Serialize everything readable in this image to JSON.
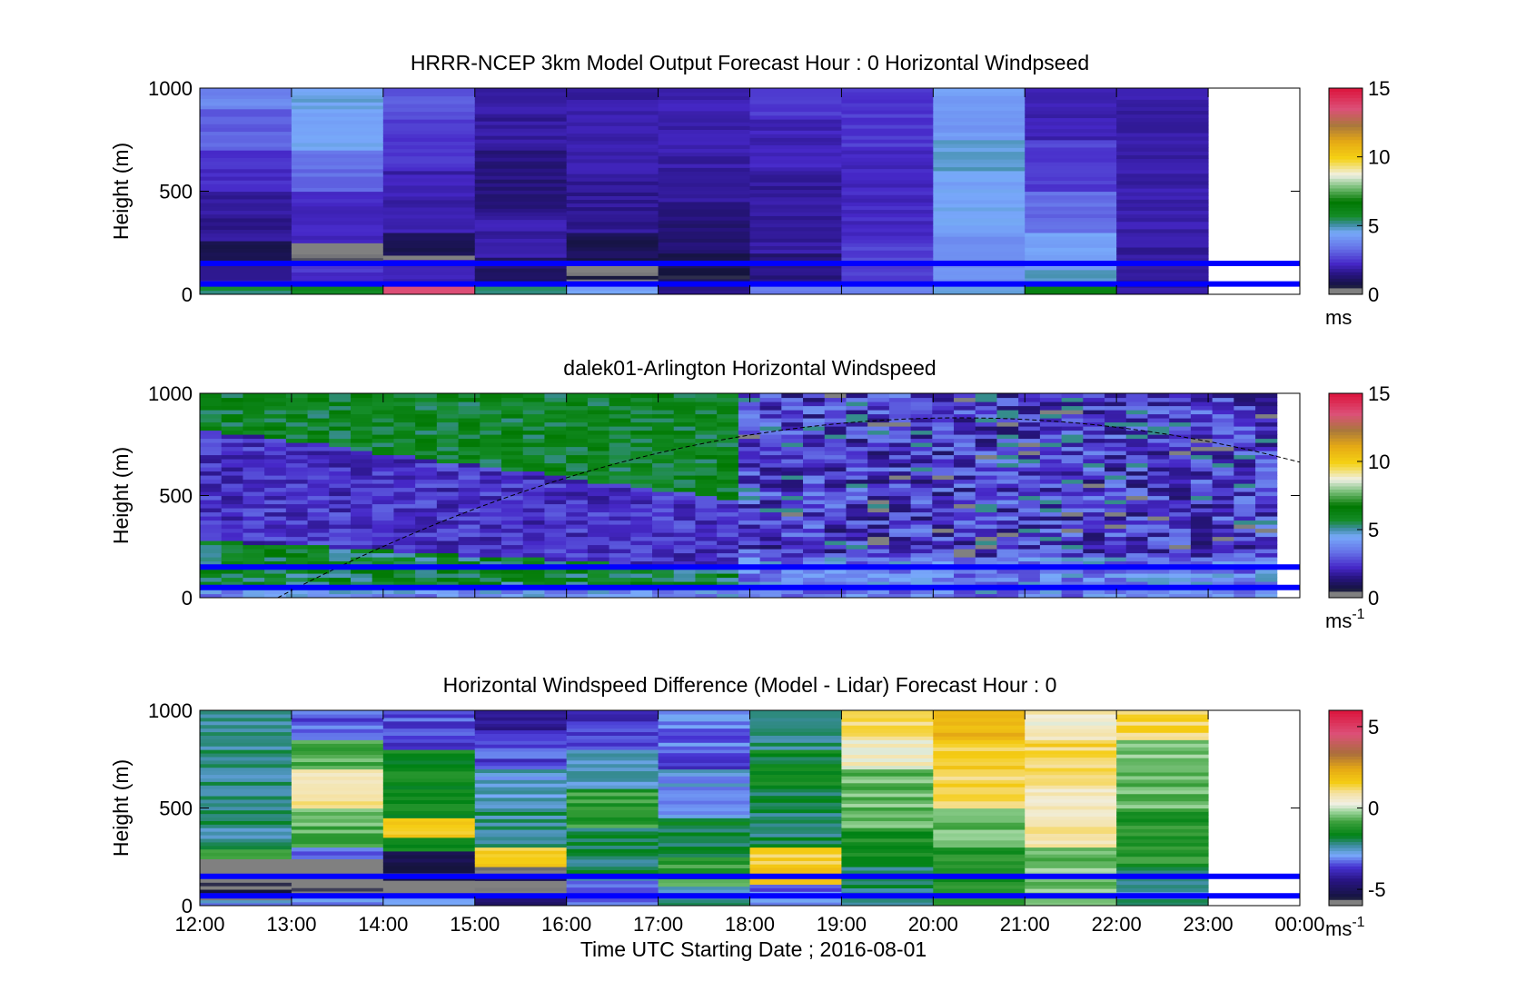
{
  "chart_data": [
    {
      "type": "heatmap",
      "title": "HRRR-NCEP 3km Model Output   Forecast Hour : 0 Horizontal Windpseed",
      "ylabel": "Height (m)",
      "ylim": [
        0,
        1000
      ],
      "yticks": [
        "0",
        "500",
        "1000"
      ],
      "xlim": [
        12,
        24
      ],
      "colorbar": {
        "label": "ms",
        "range": [
          0,
          15
        ],
        "ticks": [
          "0",
          "5",
          "10",
          "15"
        ],
        "colormap": "windspeed"
      },
      "columns": [
        {
          "hour": 12,
          "segments": [
            [
              0,
              40,
              5.5
            ],
            [
              40,
              70,
              2.2
            ],
            [
              70,
              150,
              1.5
            ],
            [
              150,
              260,
              0.8
            ],
            [
              260,
              500,
              1.7
            ],
            [
              500,
              700,
              2.3
            ],
            [
              700,
              900,
              3.1
            ],
            [
              900,
              1000,
              3.8
            ]
          ]
        },
        {
          "hour": 13,
          "segments": [
            [
              0,
              40,
              5.8
            ],
            [
              40,
              160,
              2.4
            ],
            [
              160,
              250,
              0.3
            ],
            [
              250,
              500,
              2.2
            ],
            [
              500,
              700,
              3.3
            ],
            [
              700,
              900,
              4.4
            ],
            [
              900,
              1000,
              4.6
            ]
          ]
        },
        {
          "hour": 14,
          "segments": [
            [
              0,
              40,
              13.5
            ],
            [
              40,
              170,
              2.0
            ],
            [
              170,
              190,
              0.3
            ],
            [
              190,
              300,
              1.0
            ],
            [
              300,
              600,
              2.0
            ],
            [
              600,
              850,
              2.4
            ],
            [
              850,
              1000,
              3.0
            ]
          ]
        },
        {
          "hour": 15,
          "segments": [
            [
              0,
              40,
              5.2
            ],
            [
              40,
              180,
              1.2
            ],
            [
              180,
              400,
              1.9
            ],
            [
              400,
              700,
              1.4
            ],
            [
              700,
              1000,
              1.8
            ]
          ]
        },
        {
          "hour": 16,
          "segments": [
            [
              0,
              40,
              4.5
            ],
            [
              40,
              160,
              0.5
            ],
            [
              160,
              300,
              0.9
            ],
            [
              300,
              550,
              1.7
            ],
            [
              550,
              800,
              2.0
            ],
            [
              800,
              1000,
              1.9
            ]
          ]
        },
        {
          "hour": 17,
          "segments": [
            [
              0,
              40,
              1.4
            ],
            [
              40,
              200,
              0.8
            ],
            [
              200,
              450,
              1.3
            ],
            [
              450,
              800,
              1.9
            ],
            [
              800,
              1000,
              2.0
            ]
          ]
        },
        {
          "hour": 18,
          "segments": [
            [
              0,
              40,
              3.5
            ],
            [
              40,
              200,
              1.4
            ],
            [
              200,
              600,
              1.8
            ],
            [
              600,
              850,
              2.1
            ],
            [
              850,
              1000,
              2.5
            ]
          ]
        },
        {
          "hour": 19,
          "segments": [
            [
              0,
              40,
              3.8
            ],
            [
              40,
              250,
              2.6
            ],
            [
              250,
              700,
              2.2
            ],
            [
              700,
              1000,
              2.5
            ]
          ]
        },
        {
          "hour": 20,
          "segments": [
            [
              0,
              40,
              4.6
            ],
            [
              40,
              300,
              4.0
            ],
            [
              300,
              600,
              4.4
            ],
            [
              600,
              750,
              4.8
            ],
            [
              750,
              1000,
              4.2
            ]
          ]
        },
        {
          "hour": 21,
          "segments": [
            [
              0,
              40,
              6.2
            ],
            [
              40,
              120,
              4.9
            ],
            [
              120,
              300,
              4.4
            ],
            [
              300,
              500,
              3.3
            ],
            [
              500,
              750,
              2.6
            ],
            [
              750,
              1000,
              2.0
            ]
          ]
        },
        {
          "hour": 22,
          "segments": [
            [
              0,
              300,
              1.8
            ],
            [
              300,
              1000,
              1.9
            ]
          ]
        }
      ]
    },
    {
      "type": "heatmap",
      "title": "dalek01-Arlington  Horizontal Windspeed",
      "ylabel": "Height (m)",
      "ylim": [
        0,
        1000
      ],
      "yticks": [
        "0",
        "500",
        "1000"
      ],
      "xlim": [
        12,
        24
      ],
      "colorbar": {
        "label": "ms",
        "label_sup": "-1",
        "range": [
          0,
          15
        ],
        "ticks": [
          "0",
          "5",
          "10",
          "15"
        ],
        "colormap": "windspeed"
      },
      "description": "lidar half-hourly profiles 12:00-24:00; green aloft early, purple later, with dashed boundary-layer arc"
    },
    {
      "type": "heatmap",
      "title": "Horizontal Windspeed Difference (Model - Lidar) Forecast Hour : 0",
      "ylabel": "Height (m)",
      "xlabel": "Time UTC  Starting Date ; 2016-08-01",
      "ylim": [
        0,
        1000
      ],
      "yticks": [
        "0",
        "500",
        "1000"
      ],
      "xlim": [
        12,
        24
      ],
      "xticks": [
        "12:00",
        "13:00",
        "14:00",
        "15:00",
        "16:00",
        "17:00",
        "18:00",
        "19:00",
        "20:00",
        "21:00",
        "22:00",
        "23:00",
        "00:00"
      ],
      "colorbar": {
        "label": "ms",
        "label_sup": "-1",
        "range": [
          -6,
          6
        ],
        "ticks": [
          "-5",
          "0",
          "5"
        ],
        "colormap": "difference"
      },
      "columns": [
        {
          "hour": 12,
          "segments": [
            [
              0,
              30,
              -2.8
            ],
            [
              30,
              120,
              -5.5
            ],
            [
              120,
              240,
              -6.2
            ],
            [
              240,
              290,
              -1.0
            ],
            [
              290,
              1000,
              -2.2
            ]
          ]
        },
        {
          "hour": 13,
          "segments": [
            [
              0,
              40,
              -3.2
            ],
            [
              40,
              110,
              -5.3
            ],
            [
              110,
              240,
              -6.3
            ],
            [
              240,
              300,
              -3.2
            ],
            [
              300,
              500,
              -0.7
            ],
            [
              500,
              700,
              0.8
            ],
            [
              700,
              850,
              -0.8
            ],
            [
              850,
              1000,
              -3.4
            ]
          ]
        },
        {
          "hour": 14,
          "segments": [
            [
              0,
              40,
              -3.0
            ],
            [
              40,
              130,
              -6.0
            ],
            [
              130,
              280,
              -5.3
            ],
            [
              280,
              350,
              -1.3
            ],
            [
              350,
              450,
              1.6
            ],
            [
              450,
              800,
              -1.6
            ],
            [
              800,
              1000,
              -3.5
            ]
          ]
        },
        {
          "hour": 15,
          "segments": [
            [
              0,
              40,
              -5.0
            ],
            [
              40,
              200,
              -5.5
            ],
            [
              200,
              300,
              1.5
            ],
            [
              300,
              500,
              -2.2
            ],
            [
              500,
              700,
              -2.6
            ],
            [
              700,
              900,
              -3.5
            ],
            [
              900,
              1000,
              -4.5
            ]
          ]
        },
        {
          "hour": 16,
          "segments": [
            [
              0,
              60,
              -3.0
            ],
            [
              60,
              130,
              -3.3
            ],
            [
              130,
              400,
              -2.0
            ],
            [
              400,
              600,
              -1.0
            ],
            [
              600,
              800,
              -2.4
            ],
            [
              800,
              1000,
              -3.7
            ]
          ]
        },
        {
          "hour": 17,
          "segments": [
            [
              0,
              100,
              -2.3
            ],
            [
              100,
              250,
              -1.0
            ],
            [
              250,
              450,
              -1.9
            ],
            [
              450,
              700,
              -2.8
            ],
            [
              700,
              800,
              -3.5
            ],
            [
              800,
              1000,
              -3.2
            ]
          ]
        },
        {
          "hour": 18,
          "segments": [
            [
              0,
              110,
              -3.2
            ],
            [
              110,
              300,
              1.5
            ],
            [
              300,
              600,
              -2.0
            ],
            [
              600,
              800,
              -1.6
            ],
            [
              800,
              1000,
              -2.2
            ]
          ]
        },
        {
          "hour": 19,
          "segments": [
            [
              0,
              200,
              -2.1
            ],
            [
              200,
              400,
              -1.4
            ],
            [
              400,
              700,
              -0.6
            ],
            [
              700,
              850,
              0.5
            ],
            [
              850,
              1000,
              1.2
            ]
          ]
        },
        {
          "hour": 20,
          "segments": [
            [
              0,
              300,
              -1.3
            ],
            [
              300,
              500,
              -0.4
            ],
            [
              500,
              700,
              1.2
            ],
            [
              700,
              850,
              1.5
            ],
            [
              850,
              1000,
              2.2
            ]
          ]
        },
        {
          "hour": 21,
          "segments": [
            [
              0,
              300,
              -0.5
            ],
            [
              300,
              600,
              0.8
            ],
            [
              600,
              850,
              1.3
            ],
            [
              850,
              1000,
              0.6
            ]
          ]
        },
        {
          "hour": 22,
          "segments": [
            [
              0,
              200,
              -2.2
            ],
            [
              200,
              500,
              -1.2
            ],
            [
              500,
              850,
              -0.5
            ],
            [
              850,
              1000,
              1.2
            ]
          ]
        }
      ]
    }
  ]
}
